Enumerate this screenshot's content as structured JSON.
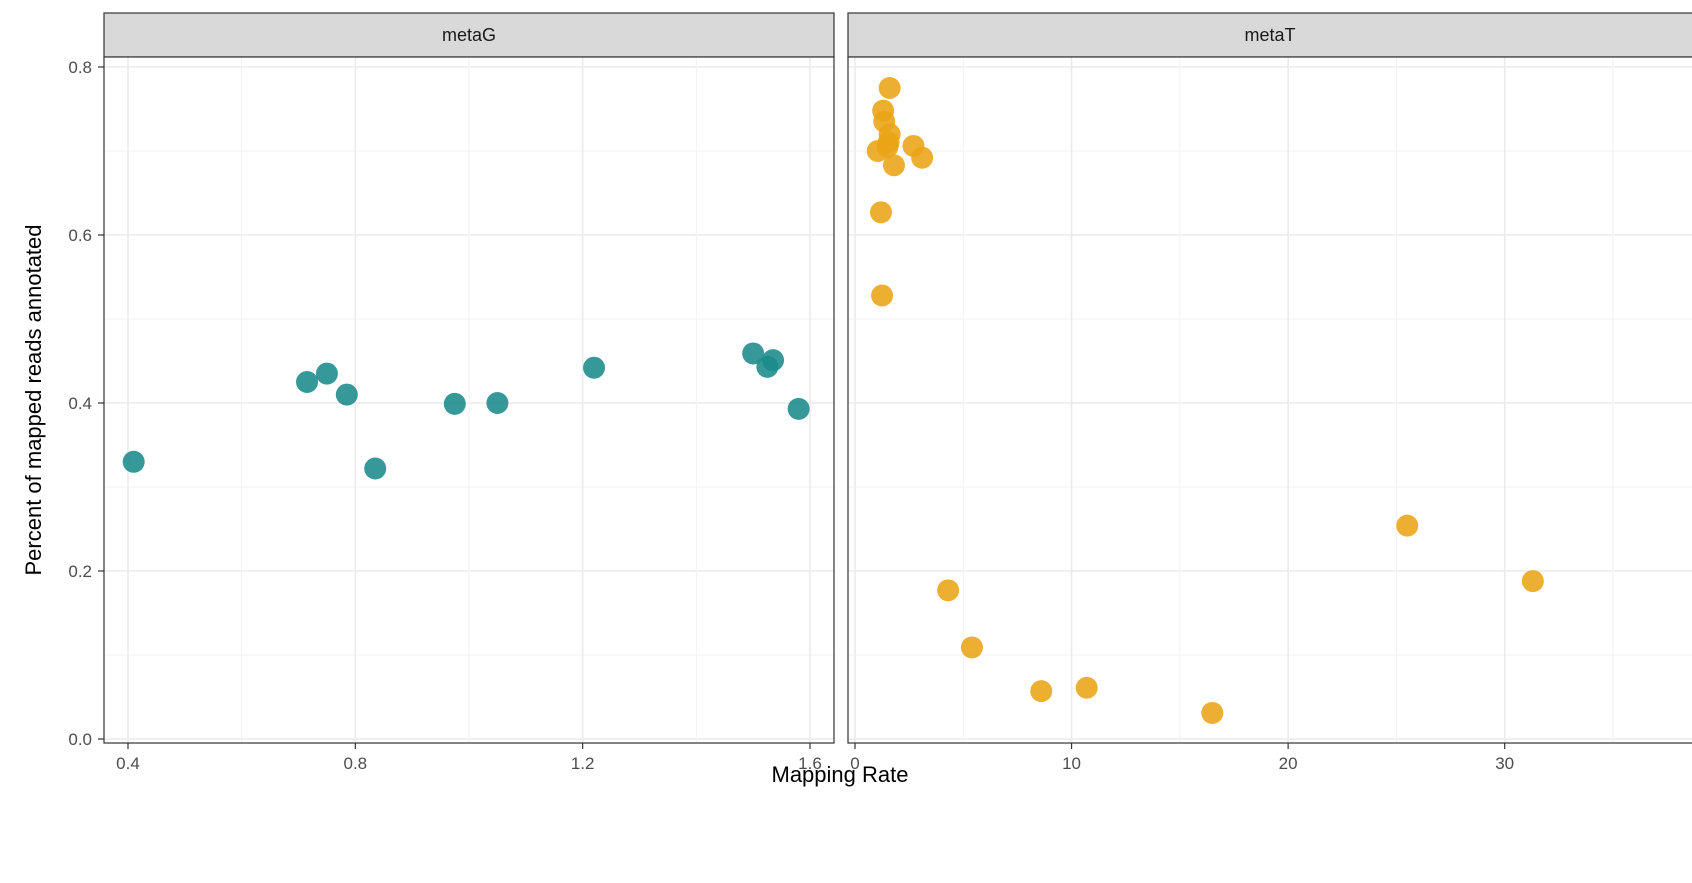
{
  "chart_data": {
    "type": "scatter",
    "xlabel": "Mapping Rate",
    "ylabel": "Percent of mapped reads annotated",
    "ylim": [
      0,
      0.8
    ],
    "y_ticks": [
      "0.0",
      "0.2",
      "0.4",
      "0.6",
      "0.8"
    ],
    "grid": true,
    "facets": [
      {
        "label": "metaG",
        "color": "#1a8a8a",
        "xlim": [
          0.4,
          1.6
        ],
        "x_ticks": [
          "0.4",
          "0.8",
          "1.2",
          "1.6"
        ],
        "points": [
          {
            "x": 0.41,
            "y": 0.33
          },
          {
            "x": 0.715,
            "y": 0.425
          },
          {
            "x": 0.75,
            "y": 0.435
          },
          {
            "x": 0.785,
            "y": 0.41
          },
          {
            "x": 0.835,
            "y": 0.322
          },
          {
            "x": 0.975,
            "y": 0.399
          },
          {
            "x": 1.05,
            "y": 0.4
          },
          {
            "x": 1.22,
            "y": 0.442
          },
          {
            "x": 1.5,
            "y": 0.459
          },
          {
            "x": 1.525,
            "y": 0.443
          },
          {
            "x": 1.535,
            "y": 0.451
          },
          {
            "x": 1.58,
            "y": 0.393
          }
        ]
      },
      {
        "label": "metaT",
        "color": "#eba416",
        "xlim": [
          0,
          32
        ],
        "x_ticks": [
          "0",
          "10",
          "20",
          "30"
        ],
        "points": [
          {
            "x": 1.6,
            "y": 0.775
          },
          {
            "x": 1.3,
            "y": 0.748
          },
          {
            "x": 1.35,
            "y": 0.735
          },
          {
            "x": 1.6,
            "y": 0.72
          },
          {
            "x": 1.55,
            "y": 0.71
          },
          {
            "x": 1.5,
            "y": 0.705
          },
          {
            "x": 1.05,
            "y": 0.7
          },
          {
            "x": 2.7,
            "y": 0.706
          },
          {
            "x": 3.1,
            "y": 0.692
          },
          {
            "x": 1.8,
            "y": 0.683
          },
          {
            "x": 1.2,
            "y": 0.627
          },
          {
            "x": 1.25,
            "y": 0.528
          },
          {
            "x": 4.3,
            "y": 0.177
          },
          {
            "x": 5.4,
            "y": 0.109
          },
          {
            "x": 8.6,
            "y": 0.057
          },
          {
            "x": 10.7,
            "y": 0.061
          },
          {
            "x": 16.5,
            "y": 0.031
          },
          {
            "x": 25.5,
            "y": 0.254
          },
          {
            "x": 31.3,
            "y": 0.188
          }
        ]
      }
    ]
  }
}
